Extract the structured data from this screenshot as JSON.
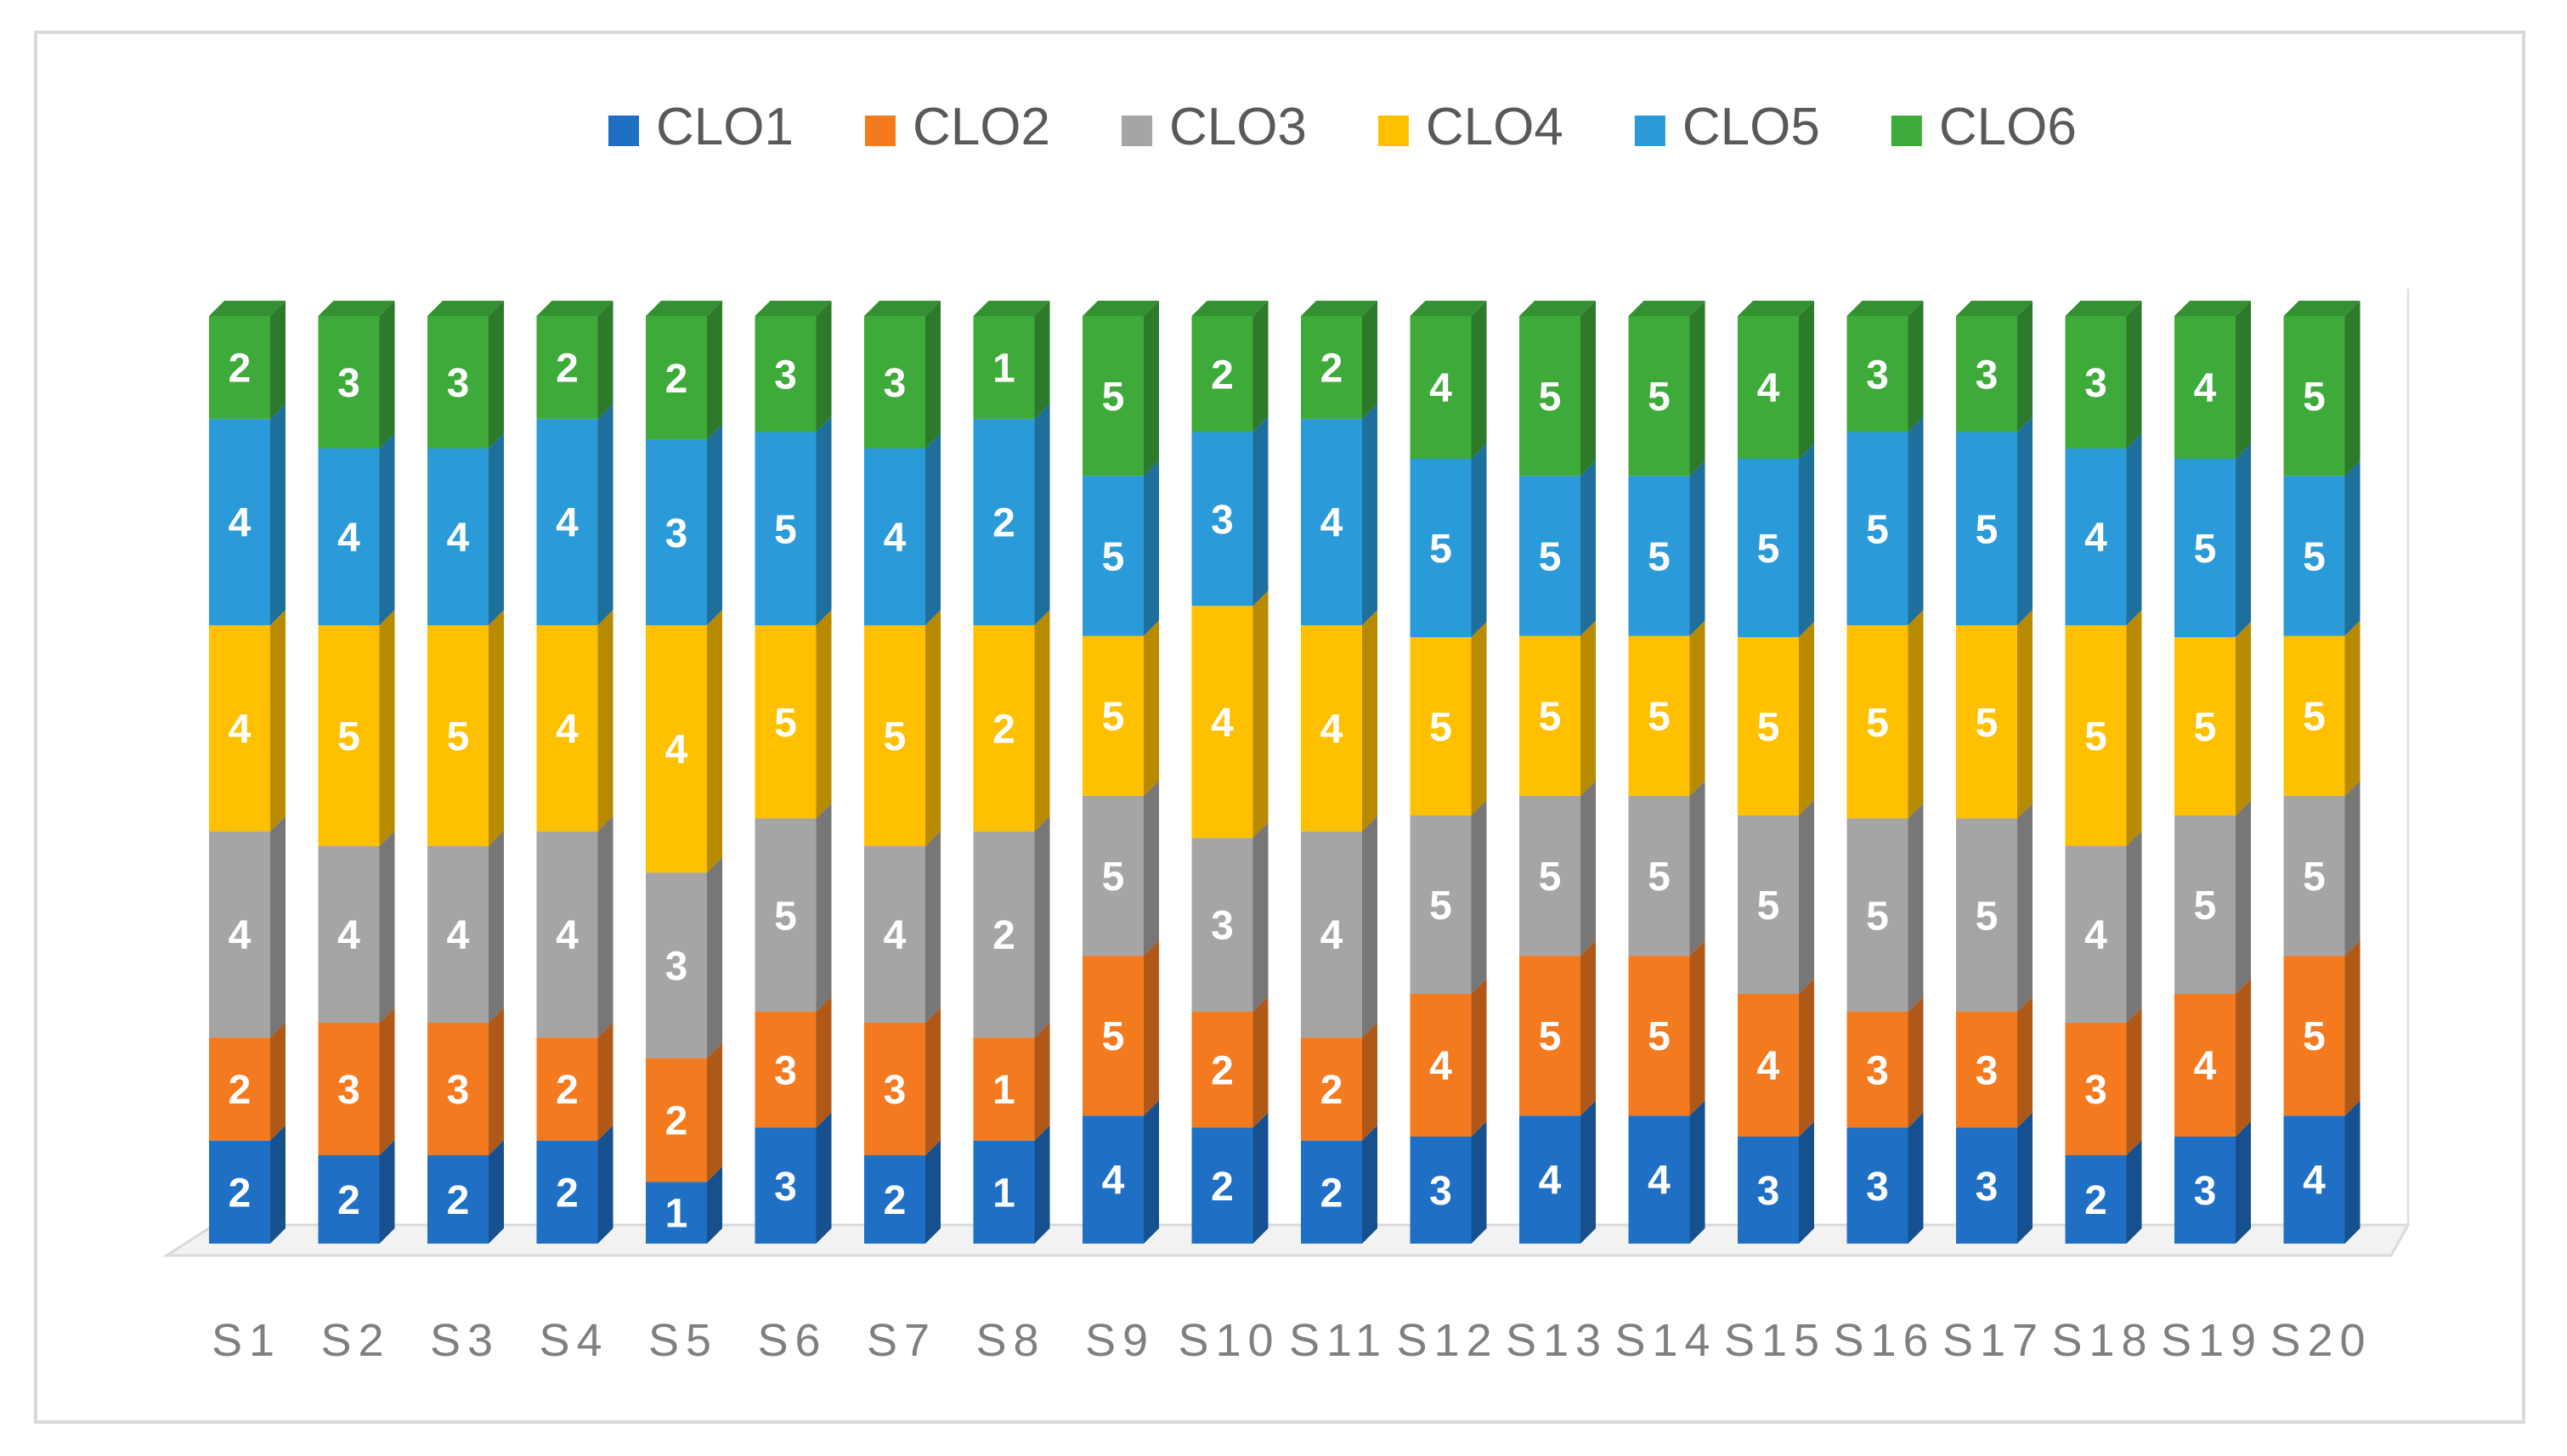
{
  "chart_data": {
    "type": "bar",
    "stacked": true,
    "three_d": true,
    "title": "",
    "xlabel": "",
    "ylabel": "",
    "legend_position": "top",
    "categories": [
      "S1",
      "S2",
      "S3",
      "S4",
      "S5",
      "S6",
      "S7",
      "S8",
      "S9",
      "S10",
      "S11",
      "S12",
      "S13",
      "S14",
      "S15",
      "S16",
      "S17",
      "S18",
      "S19",
      "S20"
    ],
    "series": [
      {
        "name": "CLO1",
        "color": "#1f6fc5",
        "values": [
          2,
          2,
          2,
          2,
          1,
          3,
          2,
          1,
          4,
          2,
          2,
          3,
          4,
          4,
          3,
          3,
          3,
          2,
          3,
          4
        ]
      },
      {
        "name": "CLO2",
        "color": "#f47a20",
        "values": [
          2,
          3,
          3,
          2,
          2,
          3,
          3,
          1,
          5,
          2,
          2,
          4,
          5,
          5,
          4,
          3,
          3,
          3,
          4,
          5
        ]
      },
      {
        "name": "CLO3",
        "color": "#a5a5a5",
        "values": [
          4,
          4,
          4,
          4,
          3,
          5,
          4,
          2,
          5,
          3,
          4,
          5,
          5,
          5,
          5,
          5,
          5,
          4,
          5,
          5
        ]
      },
      {
        "name": "CLO4",
        "color": "#ffc000",
        "values": [
          4,
          5,
          5,
          4,
          4,
          5,
          5,
          2,
          5,
          4,
          4,
          5,
          5,
          5,
          5,
          5,
          5,
          5,
          5,
          5
        ]
      },
      {
        "name": "CLO5",
        "color": "#2a9ad8",
        "values": [
          4,
          4,
          4,
          4,
          3,
          5,
          4,
          2,
          5,
          3,
          4,
          5,
          5,
          5,
          5,
          5,
          5,
          4,
          5,
          5
        ]
      },
      {
        "name": "CLO6",
        "color": "#3daa3a",
        "values": [
          2,
          3,
          3,
          2,
          2,
          3,
          3,
          1,
          5,
          2,
          2,
          4,
          5,
          5,
          4,
          3,
          3,
          3,
          4,
          5
        ]
      }
    ]
  }
}
